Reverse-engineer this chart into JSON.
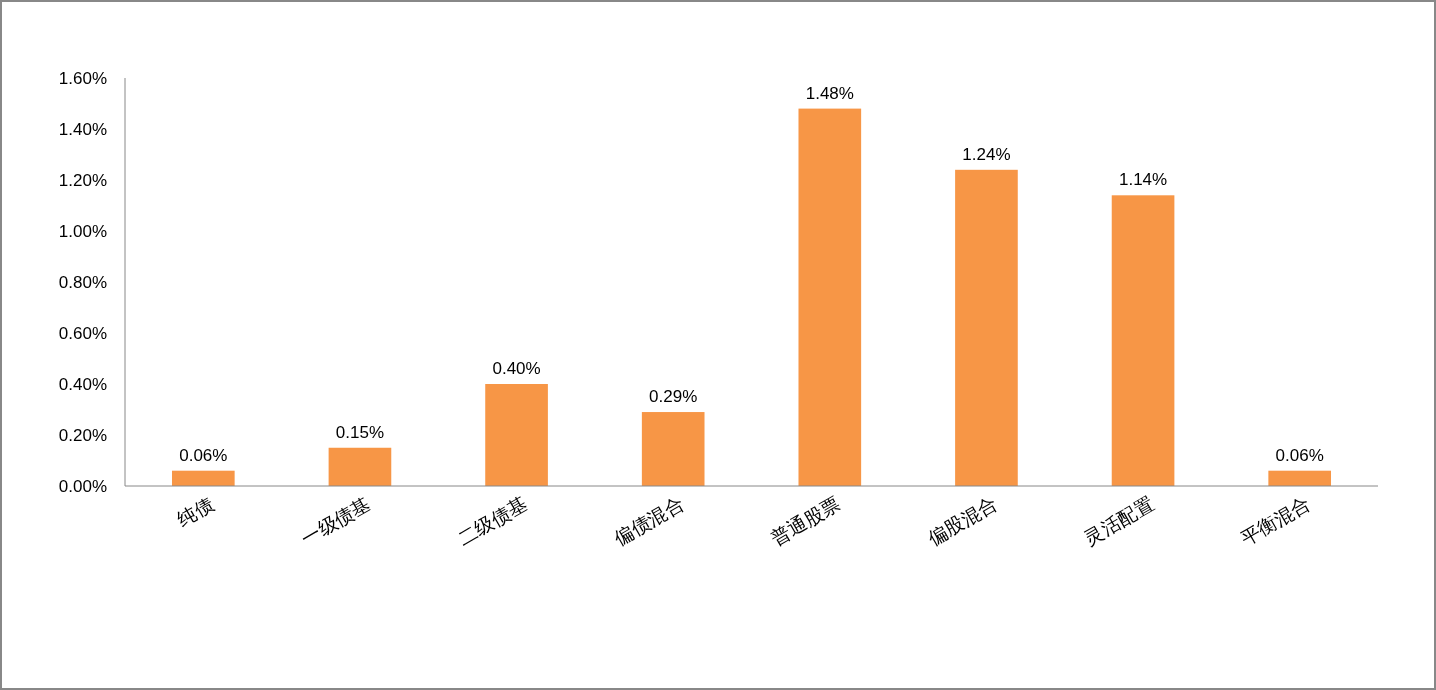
{
  "chart_data": {
    "type": "bar",
    "categories": [
      "纯债",
      "一级债基",
      "二级债基",
      "偏债混合",
      "普通股票",
      "偏股混合",
      "灵活配置",
      "平衡混合"
    ],
    "values": [
      0.06,
      0.15,
      0.4,
      0.29,
      1.48,
      1.24,
      1.14,
      0.06
    ],
    "value_labels": [
      "0.06%",
      "0.15%",
      "0.40%",
      "0.29%",
      "1.48%",
      "1.24%",
      "1.14%",
      "0.06%"
    ],
    "color": "#f79646",
    "ylim": [
      0,
      1.6
    ],
    "yticks": [
      {
        "value": 0,
        "label": "0.00%"
      },
      {
        "value": 0.2,
        "label": "0.20%"
      },
      {
        "value": 0.4,
        "label": "0.40%"
      },
      {
        "value": 0.6,
        "label": "0.60%"
      },
      {
        "value": 0.8,
        "label": "0.80%"
      },
      {
        "value": 1.0,
        "label": "1.00%"
      },
      {
        "value": 1.2,
        "label": "1.20%"
      },
      {
        "value": 1.4,
        "label": "1.40%"
      },
      {
        "value": 1.6,
        "label": "1.60%"
      }
    ],
    "grid": false
  }
}
